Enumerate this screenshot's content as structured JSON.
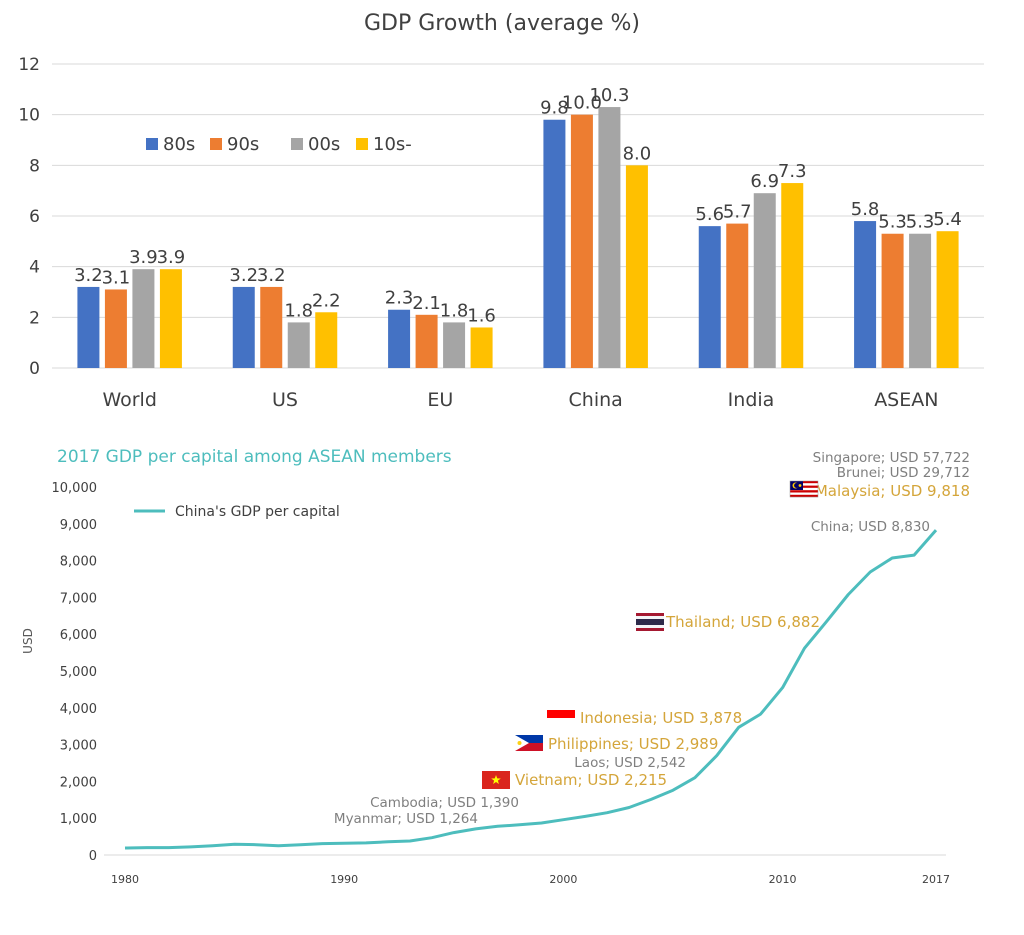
{
  "chart_data": [
    {
      "type": "bar",
      "title": "GDP Growth (average %)",
      "categories": [
        "World",
        "US",
        "EU",
        "China",
        "India",
        "ASEAN"
      ],
      "series": [
        {
          "name": "80s",
          "color": "#4472c4",
          "values": [
            3.2,
            3.2,
            2.3,
            9.8,
            5.6,
            5.8
          ]
        },
        {
          "name": "90s",
          "color": "#ed7d31",
          "values": [
            3.1,
            3.2,
            2.1,
            10.0,
            5.7,
            5.3
          ]
        },
        {
          "name": "00s",
          "color": "#a5a5a5",
          "values": [
            3.9,
            1.8,
            1.8,
            10.3,
            6.9,
            5.3
          ]
        },
        {
          "name": "10s-",
          "color": "#ffc000",
          "values": [
            3.9,
            2.2,
            1.6,
            8.0,
            7.3,
            5.4
          ]
        }
      ],
      "data_labels": [
        [
          "3.2",
          "3.1",
          "3.9",
          "3.9"
        ],
        [
          "3.2",
          "3.2",
          "1.8",
          "2.2"
        ],
        [
          "2.3",
          "2.1",
          "1.8",
          "1.6"
        ],
        [
          "9.8",
          "10.0",
          "10.3",
          "8.0"
        ],
        [
          "5.6",
          "5.7",
          "6.9",
          "7.3"
        ],
        [
          "5.8",
          "5.3",
          "5.3",
          "5.4"
        ]
      ],
      "ylim": [
        0,
        12
      ],
      "yticks": [
        "0",
        "2",
        "4",
        "6",
        "8",
        "10",
        "12"
      ],
      "grid": true,
      "legend": "top-left"
    },
    {
      "type": "line",
      "title": "2017 GDP per capital among ASEAN members",
      "ylabel": "USD",
      "xlim": [
        1980,
        2017
      ],
      "ylim": [
        0,
        10000
      ],
      "xticks": [
        "1980",
        "1990",
        "2000",
        "2010",
        "2017"
      ],
      "yticks": [
        "0",
        "1,000",
        "2,000",
        "3,000",
        "4,000",
        "5,000",
        "6,000",
        "7,000",
        "8,000",
        "9,000",
        "10,000"
      ],
      "series": [
        {
          "name": "China's GDP per capital",
          "color": "#4dbdbd",
          "x": [
            1980,
            1981,
            1982,
            1983,
            1984,
            1985,
            1986,
            1987,
            1988,
            1989,
            1990,
            1991,
            1992,
            1993,
            1994,
            1995,
            1996,
            1997,
            1998,
            1999,
            2000,
            2001,
            2002,
            2003,
            2004,
            2005,
            2006,
            2007,
            2008,
            2009,
            2010,
            2011,
            2012,
            2013,
            2014,
            2015,
            2016,
            2017
          ],
          "y": [
            190,
            200,
            200,
            220,
            250,
            290,
            280,
            250,
            280,
            310,
            320,
            330,
            360,
            380,
            470,
            610,
            710,
            780,
            820,
            870,
            960,
            1050,
            1150,
            1290,
            1510,
            1760,
            2100,
            2700,
            3470,
            3830,
            4550,
            5620,
            6340,
            7080,
            7690,
            8070,
            8150,
            8830
          ]
        }
      ],
      "legend": "top-left",
      "annotations": [
        {
          "text": "Singapore; USD 57,722",
          "style": "gray"
        },
        {
          "text": "Brunei; USD 29,712",
          "style": "gray"
        },
        {
          "text": "Malaysia; USD 9,818",
          "style": "gold",
          "flag": "malaysia-flag-icon"
        },
        {
          "text": "China; USD 8,830",
          "style": "gray"
        },
        {
          "text": "Thailand; USD 6,882",
          "style": "gold",
          "flag": "thailand-flag-icon"
        },
        {
          "text": "Indonesia; USD 3,878",
          "style": "gold",
          "flag": "indonesia-flag-icon"
        },
        {
          "text": "Philippines; USD 2,989",
          "style": "gold",
          "flag": "philippines-flag-icon"
        },
        {
          "text": "Laos; USD 2,542",
          "style": "gray"
        },
        {
          "text": "Vietnam; USD 2,215",
          "style": "gold",
          "flag": "vietnam-flag-icon"
        },
        {
          "text": "Cambodia; USD 1,390",
          "style": "gray"
        },
        {
          "text": "Myanmar; USD 1,264",
          "style": "gray"
        }
      ]
    }
  ]
}
